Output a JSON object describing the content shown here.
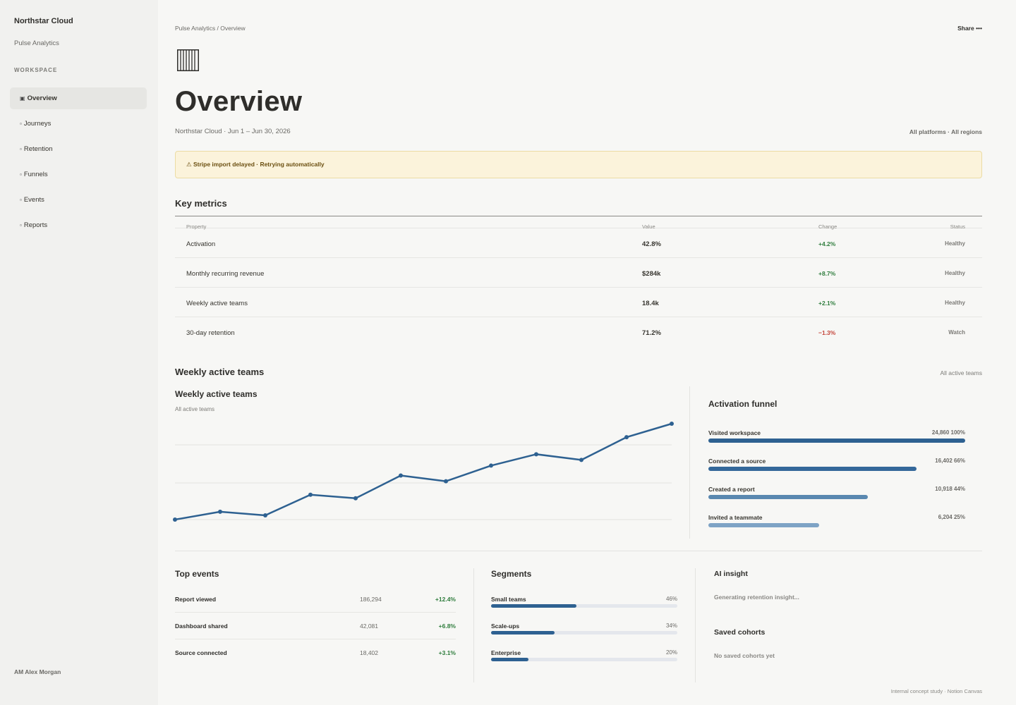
{
  "sidebar": {
    "brand": "Northstar Cloud",
    "product": "Pulse Analytics",
    "section_label": "WORKSPACE",
    "items": [
      {
        "label": "Overview",
        "glyph": "▣",
        "active": true
      },
      {
        "label": "Journeys",
        "glyph": "▫"
      },
      {
        "label": "Retention",
        "glyph": "▫"
      },
      {
        "label": "Funnels",
        "glyph": "▫"
      },
      {
        "label": "Events",
        "glyph": "▫"
      },
      {
        "label": "Reports",
        "glyph": "▫"
      }
    ],
    "user": "AM Alex Morgan"
  },
  "header": {
    "breadcrumb": "Pulse Analytics / Overview",
    "share_label": "Share •••",
    "page_icon": "barcode-icon",
    "title": "Overview",
    "subtitle": "Northstar Cloud · Jun 1 – Jun 30, 2026",
    "filters": "All platforms · All regions"
  },
  "banner": {
    "text": "⚠ Stripe import delayed · Retrying automatically",
    "color": "#fbf3db"
  },
  "key_metrics": {
    "title": "Key metrics",
    "columns": [
      "Property",
      "Value",
      "Change",
      "Status"
    ],
    "rows": [
      {
        "property": "Activation",
        "value": "42.8%",
        "change": "+4.2%",
        "trend": "up",
        "status": "Healthy"
      },
      {
        "property": "Monthly recurring revenue",
        "value": "$284k",
        "change": "+8.7%",
        "trend": "up",
        "status": "Healthy"
      },
      {
        "property": "Weekly active teams",
        "value": "18.4k",
        "change": "+2.1%",
        "trend": "up",
        "status": "Healthy"
      },
      {
        "property": "30-day retention",
        "value": "71.2%",
        "change": "−1.3%",
        "trend": "down",
        "status": "Watch"
      }
    ]
  },
  "wat_section": {
    "title": "Weekly active teams",
    "meta": "All active teams"
  },
  "chart_data": {
    "type": "line",
    "title": "Weekly active teams",
    "subtitle": "All active teams",
    "x": [
      1,
      2,
      3,
      4,
      5,
      6,
      7,
      8,
      9,
      10,
      11,
      12
    ],
    "series": [
      {
        "values": [
          0,
          11,
          6,
          35,
          30,
          62,
          54,
          76,
          92,
          84,
          116,
          135
        ]
      }
    ],
    "ylim": [
      0,
      135
    ],
    "grid": true,
    "color": "#2e6191"
  },
  "funnel": {
    "title": "Activation funnel",
    "steps": [
      {
        "label": "Visited workspace",
        "value": "24,860 100%",
        "pct": 100,
        "color": "#2e6191"
      },
      {
        "label": "Connected a source",
        "value": "16,402 66%",
        "pct": 81,
        "color": "#34689a"
      },
      {
        "label": "Created a report",
        "value": "10,918 44%",
        "pct": 62,
        "color": "#5a88b0"
      },
      {
        "label": "Invited a teammate",
        "value": "6,204 25%",
        "pct": 43,
        "color": "#7ea3c5"
      }
    ]
  },
  "top_events": {
    "title": "Top events",
    "rows": [
      {
        "name": "Report viewed",
        "count": "186,294",
        "delta": "+12.4%"
      },
      {
        "name": "Dashboard shared",
        "count": "42,081",
        "delta": "+6.8%"
      },
      {
        "name": "Source connected",
        "count": "18,402",
        "delta": "+3.1%"
      }
    ]
  },
  "segments": {
    "title": "Segments",
    "rows": [
      {
        "name": "Small teams",
        "pct_label": "46%",
        "pct": 46
      },
      {
        "name": "Scale-ups",
        "pct_label": "34%",
        "pct": 34
      },
      {
        "name": "Enterprise",
        "pct_label": "20%",
        "pct": 20
      }
    ]
  },
  "ai_insight": {
    "title": "AI insight",
    "status": "Generating retention insight..."
  },
  "saved_cohorts": {
    "title": "Saved cohorts",
    "empty": "No saved cohorts yet"
  },
  "footer": "Internal concept study · Notion Canvas"
}
